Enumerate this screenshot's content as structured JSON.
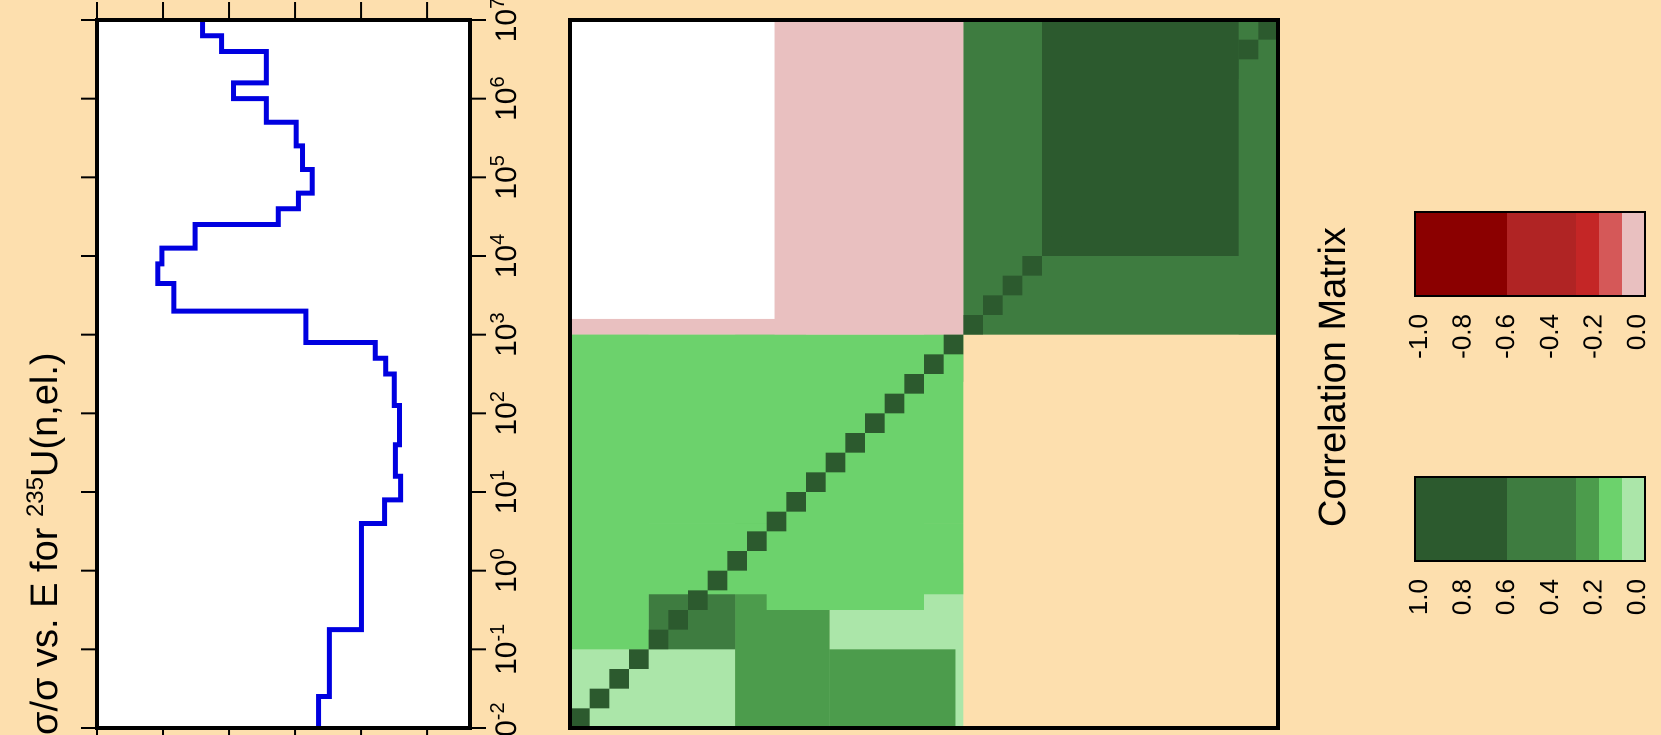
{
  "colors": {
    "background": "#fddfae",
    "spectrum_line": "#0000e0",
    "pos_scale": [
      "#abe6a9",
      "#6cd26c",
      "#4c9c4c",
      "#3e7c40",
      "#2c5a2e"
    ],
    "neg_scale": [
      "#e9c0c0",
      "#d55858",
      "#c42626",
      "#b02424",
      "#8b0000"
    ]
  },
  "ylabel_prefix": "σ/σ vs. E for ",
  "ylabel_sup": "235",
  "ylabel_suffix": "U(n,el.)",
  "legend_title": "Correlation Matrix",
  "chart_data": [
    {
      "type": "line",
      "orientation": "rotated",
      "ylabel": "σ/σ vs. E for 235U(n,el.)",
      "energy_axis": {
        "scale": "log",
        "range_exponent": [
          -2,
          7
        ],
        "tick_base": "10",
        "tick_exponents": [
          "-2",
          "-1",
          "0",
          "1",
          "2",
          "3",
          "4",
          "5",
          "6",
          "7"
        ]
      },
      "value_axis_ticks": 6,
      "grid": false,
      "steps": [
        {
          "e_log": [
            -2.0,
            -1.6
          ],
          "v": 0.594
        },
        {
          "e_log": [
            -1.6,
            -0.75
          ],
          "v": 0.623
        },
        {
          "e_log": [
            -0.75,
            0.6
          ],
          "v": 0.709
        },
        {
          "e_log": [
            0.6,
            0.9
          ],
          "v": 0.771
        },
        {
          "e_log": [
            0.9,
            1.2
          ],
          "v": 0.814
        },
        {
          "e_log": [
            1.2,
            1.6
          ],
          "v": 0.8
        },
        {
          "e_log": [
            1.6,
            2.1
          ],
          "v": 0.811
        },
        {
          "e_log": [
            2.1,
            2.5
          ],
          "v": 0.797
        },
        {
          "e_log": [
            2.5,
            2.7
          ],
          "v": 0.774
        },
        {
          "e_log": [
            2.7,
            2.9
          ],
          "v": 0.746
        },
        {
          "e_log": [
            2.9,
            3.3
          ],
          "v": 0.56
        },
        {
          "e_log": [
            3.3,
            3.65
          ],
          "v": 0.206
        },
        {
          "e_log": [
            3.65,
            3.9
          ],
          "v": 0.163
        },
        {
          "e_log": [
            3.9,
            4.1
          ],
          "v": 0.174
        },
        {
          "e_log": [
            4.1,
            4.4
          ],
          "v": 0.263
        },
        {
          "e_log": [
            4.4,
            4.6
          ],
          "v": 0.486
        },
        {
          "e_log": [
            4.6,
            4.8
          ],
          "v": 0.54
        },
        {
          "e_log": [
            4.8,
            5.1
          ],
          "v": 0.577
        },
        {
          "e_log": [
            5.1,
            5.4
          ],
          "v": 0.551
        },
        {
          "e_log": [
            5.4,
            5.7
          ],
          "v": 0.534
        },
        {
          "e_log": [
            5.7,
            6.0
          ],
          "v": 0.454
        },
        {
          "e_log": [
            6.0,
            6.2
          ],
          "v": 0.366
        },
        {
          "e_log": [
            6.2,
            6.6
          ],
          "v": 0.454
        },
        {
          "e_log": [
            6.6,
            6.8
          ],
          "v": 0.334
        },
        {
          "e_log": [
            6.8,
            7.0
          ],
          "v": 0.283
        }
      ]
    },
    {
      "type": "heatmap",
      "title": "Correlation Matrix",
      "value_range": [
        -1.0,
        1.0
      ],
      "cells": [
        {
          "a": [
            -2.0,
            3.0
          ],
          "b": [
            3.0,
            7.0
          ],
          "v": null
        },
        {
          "a": [
            3.0,
            7.0
          ],
          "b": [
            3.0,
            7.0
          ],
          "v": 0.7
        },
        {
          "a": [
            4.0,
            7.0
          ],
          "b": [
            4.0,
            7.0
          ],
          "v": 0.9
        },
        {
          "a": [
            6.7,
            7.0
          ],
          "b": [
            6.0,
            6.7
          ],
          "v": 0.35
        },
        {
          "a": [
            6.5,
            7.0
          ],
          "b": [
            3.0,
            7.0
          ],
          "v": 0.7
        },
        {
          "a": [
            4.6,
            5.6
          ],
          "b": [
            5.7,
            6.7
          ],
          "v": 0.9
        },
        {
          "a": [
            4.0,
            4.7
          ],
          "b": [
            4.0,
            6.5
          ],
          "v": 0.9
        },
        {
          "a": [
            4.0,
            4.2
          ],
          "b": [
            3.3,
            4.0
          ],
          "v": 0.7
        },
        {
          "a": [
            -2.0,
            0.1
          ],
          "b": [
            -2.0,
            3.0
          ],
          "v": 0.1
        },
        {
          "a": [
            0.1,
            1.0
          ],
          "b": [
            -2.0,
            3.0
          ],
          "v": 0.5
        },
        {
          "a": [
            1.0,
            1.3
          ],
          "b": [
            -2.0,
            0.1
          ],
          "v": 0.1
        },
        {
          "a": [
            1.3,
            3.0
          ],
          "b": [
            -2.0,
            0.1
          ],
          "v": 0.1
        },
        {
          "a": [
            1.3,
            2.9
          ],
          "b": [
            -2.0,
            -1.0
          ],
          "v": 0.5
        },
        {
          "a": [
            0.1,
            1.3
          ],
          "b": [
            -2.0,
            0.1
          ],
          "v": 0.5
        },
        {
          "a": [
            -1.0,
            0.1
          ],
          "b": [
            -1.0,
            0.5
          ],
          "v": 0.7
        },
        {
          "a": [
            -2.0,
            -1.0
          ],
          "b": [
            -1.0,
            3.0
          ],
          "v": 0.3
        },
        {
          "a": [
            0.5,
            2.5
          ],
          "b": [
            -0.5,
            1.5
          ],
          "v": 0.3
        },
        {
          "a": [
            2.5,
            3.0
          ],
          "b": [
            2.4,
            3.0
          ],
          "v": 0.7
        },
        {
          "a": [
            1.5,
            2.8
          ],
          "b": [
            1.2,
            2.7
          ],
          "v": 0.7
        },
        {
          "a": [
            1.9,
            2.4
          ],
          "b": [
            1.5,
            2.0
          ],
          "v": 0.9
        },
        {
          "a": [
            -2.0,
            3.0
          ],
          "b": [
            -2.0,
            3.0
          ],
          "v": null,
          "diag": true
        },
        {
          "a": [
            -2.0,
            3.0
          ],
          "b": [
            3.0,
            3.2
          ],
          "v": -0.1
        },
        {
          "a": [
            -2.0,
            3.0
          ],
          "b": [
            0.6,
            3.0
          ],
          "v": 0.2
        },
        {
          "a": [
            0.6,
            3.0
          ],
          "b": [
            3.0,
            7.0
          ],
          "v": -0.1
        },
        {
          "a": [
            -2.0,
            3.0
          ],
          "b": [
            -0.3,
            0.6
          ],
          "v": 0.3
        }
      ],
      "legend": {
        "positive": {
          "labels": [
            "1.0",
            "0.8",
            "0.6",
            "0.4",
            "0.2",
            "0.0"
          ]
        },
        "negative": {
          "labels": [
            "-1.0",
            "-0.8",
            "-0.6",
            "-0.4",
            "-0.2",
            "0.0"
          ]
        }
      }
    }
  ]
}
